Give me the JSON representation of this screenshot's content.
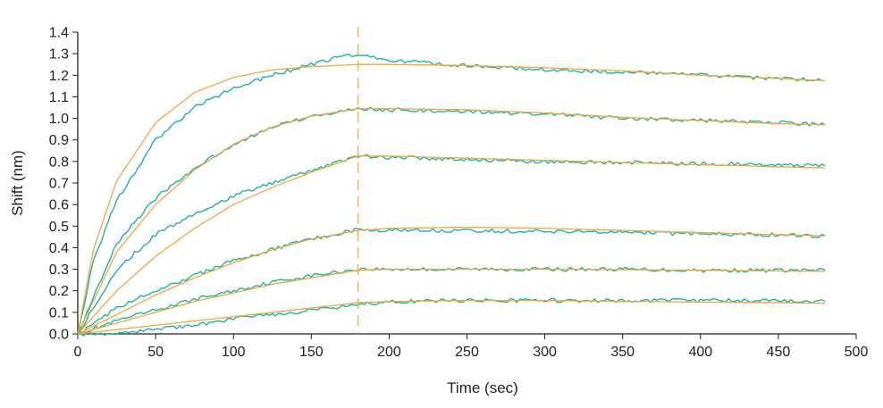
{
  "chart_data": {
    "type": "line",
    "title": "",
    "xlabel": "Time (sec)",
    "ylabel": "Shift (nm)",
    "xlim": [
      0,
      500
    ],
    "ylim": [
      0,
      1.4
    ],
    "x_ticks": [
      "0",
      "50",
      "100",
      "150",
      "200",
      "250",
      "300",
      "350",
      "400",
      "450",
      "500"
    ],
    "y_ticks": [
      "0.0",
      "0.1",
      "0.2",
      "0.3",
      "0.4",
      "0.5",
      "0.6",
      "0.7",
      "0.8",
      "0.9",
      "1.0",
      "1.1",
      "1.2",
      "1.3",
      "1.4"
    ],
    "grid": false,
    "legend": "none",
    "annotations": [
      {
        "type": "vertical-dashed-line",
        "x": 180
      }
    ],
    "colors": {
      "measured": "#1AB5A6",
      "fit": "#F4A638",
      "axis": "#222222"
    },
    "series": [
      {
        "role": "measured",
        "x": [
          0,
          10,
          25,
          50,
          75,
          100,
          125,
          150,
          165,
          180,
          200,
          250,
          300,
          350,
          400,
          450,
          480
        ],
        "values": [
          0.0,
          0.34,
          0.62,
          0.9,
          1.05,
          1.14,
          1.2,
          1.25,
          1.28,
          1.295,
          1.27,
          1.245,
          1.225,
          1.215,
          1.2,
          1.185,
          1.175
        ]
      },
      {
        "role": "fit",
        "x": [
          0,
          10,
          25,
          50,
          75,
          100,
          125,
          150,
          180,
          200,
          250,
          300,
          350,
          400,
          450,
          480
        ],
        "values": [
          0.0,
          0.39,
          0.71,
          0.98,
          1.12,
          1.19,
          1.225,
          1.24,
          1.25,
          1.25,
          1.245,
          1.235,
          1.22,
          1.2,
          1.185,
          1.175
        ]
      },
      {
        "role": "measured",
        "x": [
          0,
          25,
          50,
          75,
          100,
          125,
          150,
          180,
          200,
          250,
          300,
          350,
          400,
          450,
          480
        ],
        "values": [
          0.0,
          0.42,
          0.63,
          0.77,
          0.88,
          0.96,
          1.01,
          1.045,
          1.04,
          1.03,
          1.02,
          1.0,
          0.99,
          0.98,
          0.97
        ]
      },
      {
        "role": "fit",
        "x": [
          0,
          25,
          50,
          75,
          100,
          125,
          150,
          180,
          200,
          250,
          300,
          350,
          400,
          450,
          480
        ],
        "values": [
          0.0,
          0.38,
          0.6,
          0.76,
          0.88,
          0.96,
          1.01,
          1.045,
          1.045,
          1.04,
          1.025,
          1.005,
          0.99,
          0.975,
          0.97
        ]
      },
      {
        "role": "measured",
        "x": [
          0,
          25,
          50,
          75,
          100,
          125,
          150,
          180,
          200,
          250,
          300,
          350,
          400,
          450,
          480
        ],
        "values": [
          0.0,
          0.3,
          0.46,
          0.56,
          0.64,
          0.7,
          0.76,
          0.825,
          0.82,
          0.81,
          0.8,
          0.795,
          0.79,
          0.785,
          0.78
        ]
      },
      {
        "role": "fit",
        "x": [
          0,
          25,
          50,
          75,
          100,
          125,
          150,
          180,
          200,
          250,
          300,
          350,
          400,
          450,
          480
        ],
        "values": [
          0.0,
          0.2,
          0.36,
          0.49,
          0.6,
          0.68,
          0.75,
          0.825,
          0.825,
          0.815,
          0.805,
          0.795,
          0.785,
          0.775,
          0.77
        ]
      },
      {
        "role": "measured",
        "x": [
          0,
          25,
          50,
          75,
          100,
          125,
          150,
          180,
          200,
          250,
          300,
          350,
          400,
          450,
          480
        ],
        "values": [
          0.0,
          0.12,
          0.2,
          0.27,
          0.34,
          0.39,
          0.44,
          0.485,
          0.48,
          0.48,
          0.475,
          0.47,
          0.465,
          0.46,
          0.455
        ]
      },
      {
        "role": "fit",
        "x": [
          0,
          25,
          50,
          75,
          100,
          125,
          150,
          180,
          200,
          250,
          300,
          350,
          400,
          450,
          480
        ],
        "values": [
          0.0,
          0.09,
          0.18,
          0.26,
          0.33,
          0.39,
          0.44,
          0.48,
          0.49,
          0.495,
          0.49,
          0.48,
          0.47,
          0.46,
          0.455
        ]
      },
      {
        "role": "measured",
        "x": [
          0,
          25,
          50,
          75,
          100,
          125,
          150,
          180,
          200,
          250,
          300,
          350,
          400,
          450,
          480
        ],
        "values": [
          0.0,
          0.06,
          0.11,
          0.16,
          0.2,
          0.24,
          0.27,
          0.3,
          0.3,
          0.3,
          0.3,
          0.3,
          0.295,
          0.295,
          0.295
        ]
      },
      {
        "role": "fit",
        "x": [
          0,
          25,
          50,
          75,
          100,
          125,
          150,
          180,
          200,
          250,
          300,
          350,
          400,
          450,
          480
        ],
        "values": [
          0.0,
          0.05,
          0.1,
          0.15,
          0.19,
          0.23,
          0.26,
          0.295,
          0.3,
          0.3,
          0.3,
          0.298,
          0.295,
          0.292,
          0.29
        ]
      },
      {
        "role": "measured",
        "x": [
          0,
          25,
          50,
          75,
          100,
          125,
          150,
          180,
          200,
          250,
          300,
          350,
          400,
          450,
          480
        ],
        "values": [
          0.0,
          0.0,
          0.02,
          0.04,
          0.07,
          0.09,
          0.11,
          0.135,
          0.15,
          0.155,
          0.155,
          0.155,
          0.155,
          0.155,
          0.15
        ]
      },
      {
        "role": "fit",
        "x": [
          0,
          25,
          50,
          75,
          100,
          125,
          150,
          180,
          200,
          250,
          300,
          350,
          400,
          450,
          480
        ],
        "values": [
          0.0,
          0.02,
          0.04,
          0.06,
          0.08,
          0.1,
          0.12,
          0.145,
          0.15,
          0.155,
          0.155,
          0.15,
          0.148,
          0.145,
          0.142
        ]
      }
    ]
  }
}
